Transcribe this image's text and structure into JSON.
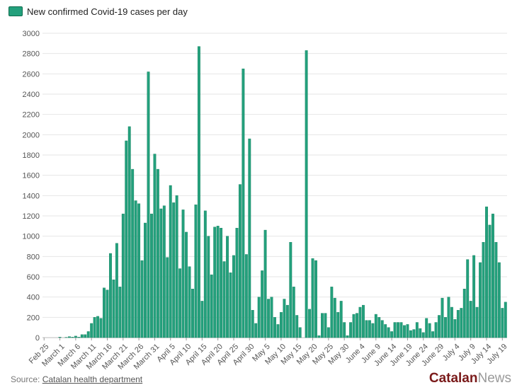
{
  "chart_data": {
    "type": "bar",
    "title": "",
    "legend": {
      "label": "New confirmed Covid-19 cases per day",
      "placement": "top-left"
    },
    "xlabel": "",
    "ylabel": "",
    "ylim": [
      0,
      3000
    ],
    "yticks": [
      0,
      200,
      400,
      600,
      800,
      1000,
      1200,
      1400,
      1600,
      1800,
      2000,
      2200,
      2400,
      2600,
      2800,
      3000
    ],
    "grid": true,
    "xtick_labels": [
      {
        "label": "Feb 25",
        "index": 0
      },
      {
        "label": "March 1",
        "index": 5
      },
      {
        "label": "March 6",
        "index": 10
      },
      {
        "label": "March 11",
        "index": 15
      },
      {
        "label": "March 16",
        "index": 20
      },
      {
        "label": "March 21",
        "index": 25
      },
      {
        "label": "March 26",
        "index": 30
      },
      {
        "label": "March 31",
        "index": 35
      },
      {
        "label": "April 5",
        "index": 40
      },
      {
        "label": "April 10",
        "index": 45
      },
      {
        "label": "April 15",
        "index": 50
      },
      {
        "label": "April 20",
        "index": 55
      },
      {
        "label": "April 25",
        "index": 60
      },
      {
        "label": "April 30",
        "index": 65
      },
      {
        "label": "May 5",
        "index": 70
      },
      {
        "label": "May 10",
        "index": 75
      },
      {
        "label": "May 15",
        "index": 80
      },
      {
        "label": "May 20",
        "index": 85
      },
      {
        "label": "May 25",
        "index": 90
      },
      {
        "label": "May 30",
        "index": 95
      },
      {
        "label": "June 4",
        "index": 100
      },
      {
        "label": "June 9",
        "index": 105
      },
      {
        "label": "June 14",
        "index": 110
      },
      {
        "label": "June 19",
        "index": 115
      },
      {
        "label": "June 24",
        "index": 120
      },
      {
        "label": "June 29",
        "index": 125
      },
      {
        "label": "July 4",
        "index": 130
      },
      {
        "label": "July 9",
        "index": 135
      },
      {
        "label": "July 14",
        "index": 140
      },
      {
        "label": "July 19",
        "index": 145
      }
    ],
    "series": [
      {
        "name": "New confirmed Covid-19 cases per day",
        "color": "#23a07c",
        "values": [
          0,
          0,
          0,
          0,
          0,
          5,
          0,
          3,
          10,
          5,
          15,
          5,
          30,
          30,
          60,
          140,
          200,
          210,
          190,
          490,
          470,
          830,
          570,
          930,
          500,
          1220,
          1940,
          2080,
          1660,
          1350,
          1320,
          760,
          1130,
          2620,
          1220,
          1810,
          1660,
          1270,
          1300,
          790,
          1500,
          1330,
          1400,
          680,
          1260,
          1040,
          700,
          480,
          1310,
          2870,
          360,
          1250,
          1000,
          620,
          1090,
          1100,
          1080,
          750,
          1000,
          640,
          810,
          1080,
          1510,
          2650,
          820,
          1960,
          270,
          140,
          400,
          660,
          1060,
          380,
          400,
          200,
          130,
          250,
          380,
          320,
          940,
          500,
          220,
          100,
          0,
          2830,
          280,
          780,
          760,
          20,
          240,
          240,
          100,
          500,
          390,
          250,
          360,
          150,
          20,
          150,
          230,
          240,
          300,
          320,
          170,
          170,
          140,
          230,
          200,
          170,
          130,
          100,
          60,
          150,
          150,
          150,
          120,
          130,
          70,
          80,
          150,
          90,
          50,
          190,
          140,
          60,
          150,
          220,
          390,
          200,
          400,
          300,
          180,
          270,
          290,
          480,
          770,
          360,
          810,
          300,
          740,
          940,
          1290,
          1110,
          1220,
          940,
          740,
          290,
          350
        ]
      }
    ]
  },
  "source": {
    "prefix": "Source: ",
    "link_text": "Catalan health department"
  },
  "brand": {
    "part1": "Catalan",
    "part2": "News"
  }
}
